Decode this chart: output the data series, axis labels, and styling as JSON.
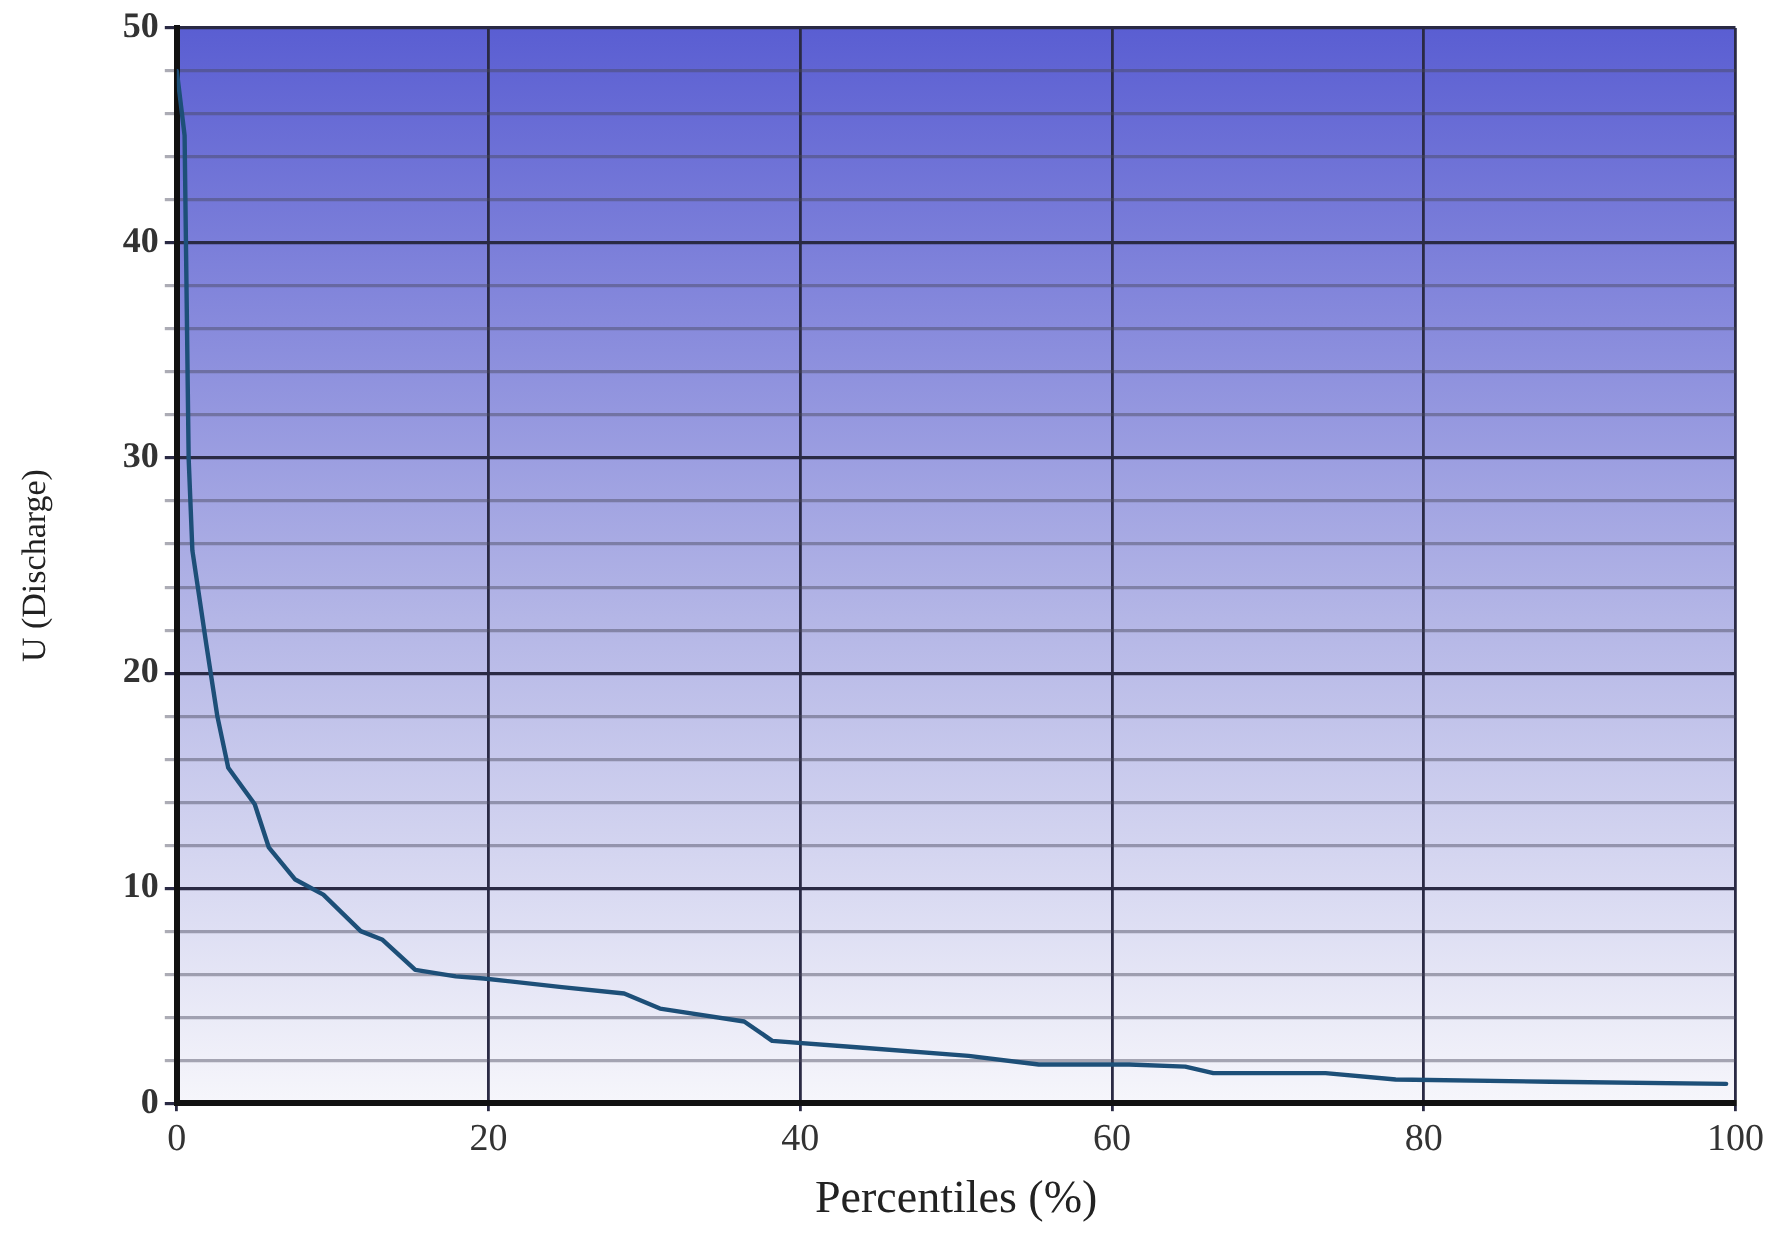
{
  "chart_data": {
    "type": "line",
    "xlabel": "Percentiles (%)",
    "ylabel": "U (Discharge)",
    "series": [
      {
        "color": "#1d4f78",
        "x": [
          0,
          0.5,
          0.76,
          1.0,
          1.9,
          2.6,
          3.3,
          5.0,
          5.9,
          7.6,
          9.4,
          11.8,
          13.2,
          15.3,
          17.9,
          19.7,
          24.7,
          28.7,
          31,
          36.4,
          38.2,
          43.6,
          50.8,
          55.3,
          61.1,
          64.7,
          66.5,
          73.7,
          78.2,
          88.1,
          99.4
        ],
        "values": [
          48,
          45,
          30,
          25.7,
          21.3,
          18,
          15.6,
          13.9,
          11.9,
          10.4,
          9.7,
          8,
          7.6,
          6.2,
          5.9,
          5.8,
          5.4,
          5.1,
          4.4,
          3.8,
          2.9,
          2.6,
          2.2,
          1.8,
          1.8,
          1.7,
          1.4,
          1.4,
          1.1,
          1.0,
          0.9
        ]
      }
    ],
    "xlim": [
      0,
      100
    ],
    "xticks": [
      0,
      20,
      40,
      60,
      80,
      100
    ],
    "ylim": [
      0,
      50
    ],
    "yticks": [
      0,
      {
        "value": 2,
        "label": null
      },
      {
        "value": 4,
        "label": null
      },
      {
        "value": 6,
        "label": null
      },
      {
        "value": 8,
        "label": null
      },
      10,
      {
        "value": 12,
        "label": null
      },
      {
        "value": 14,
        "label": null
      },
      {
        "value": 16,
        "label": null
      },
      {
        "value": 18,
        "label": null
      },
      20,
      {
        "value": 22,
        "label": null
      },
      {
        "value": 24,
        "label": null
      },
      {
        "value": 26,
        "label": null
      },
      {
        "value": 28,
        "label": null
      },
      30,
      {
        "value": 32,
        "label": null
      },
      {
        "value": 34,
        "label": null
      },
      {
        "value": 36,
        "label": null
      },
      {
        "value": 38,
        "label": null
      },
      40,
      {
        "value": 42,
        "label": null
      },
      {
        "value": 44,
        "label": null
      },
      {
        "value": 46,
        "label": null
      },
      {
        "value": 48,
        "label": null
      },
      50
    ],
    "grid": true,
    "marker": "none",
    "line_style": "solid"
  }
}
